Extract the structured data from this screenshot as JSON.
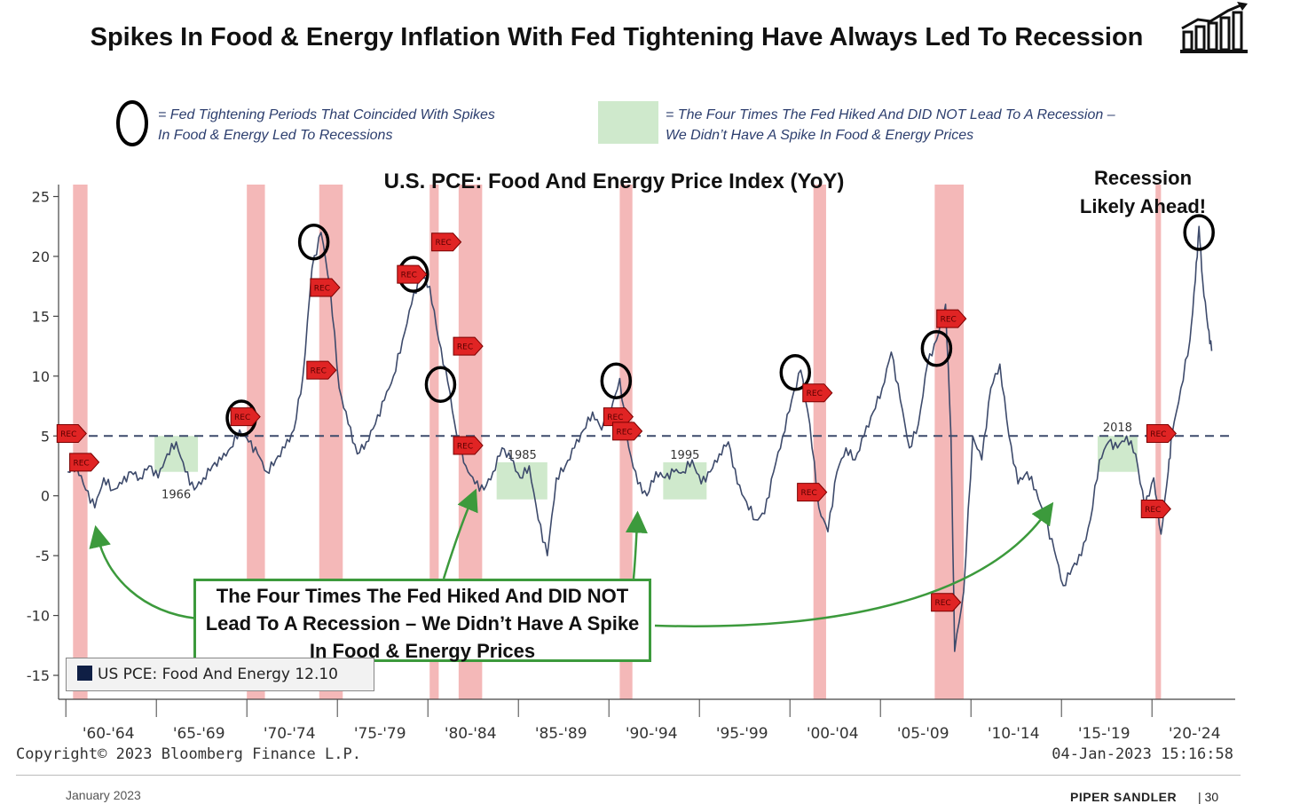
{
  "header": {
    "title": "Spikes In Food & Energy Inflation With Fed Tightening Have Always Led To Recession",
    "logo_icon": "bar-chart-arrow-icon"
  },
  "legend_notes": {
    "circle_note_line1": "= Fed Tightening Periods That Coincided With Spikes",
    "circle_note_line2": "In Food & Energy Led To Recessions",
    "green_note_line1": "= The Four Times The Fed Hiked And DID NOT Lead To A Recession –",
    "green_note_line2": "We Didn’t Have A Spike In Food & Energy Prices"
  },
  "colors": {
    "series": "#3d4a6b",
    "recession_band": "#f4b8b8",
    "green_band": "#cfe9cc",
    "rec_marker": "#e02424",
    "callout_border": "#3c9a3c",
    "dash_line": "#3d4a6b"
  },
  "callout": {
    "line1": "The Four Times The Fed Hiked And DID NOT",
    "line2": "Lead To A Recession – We Didn’t Have A Spike",
    "line3": "In Food & Energy Prices"
  },
  "annotation": {
    "line1": "Recession",
    "line2": "Likely Ahead!"
  },
  "footer": {
    "copyright": "Copyright© 2023 Bloomberg Finance L.P.",
    "timestamp": "04-Jan-2023 15:16:58",
    "date": "January 2023",
    "brand": "PIPER SANDLER",
    "page": "| 30"
  },
  "chart_data": {
    "type": "line",
    "title": "U.S. PCE: Food And Energy Price Index (YoY)",
    "legend": "US PCE: Food And Energy 12.10",
    "last_value": 12.1,
    "x_range": [
      1959.5,
      2024.5
    ],
    "ylim": [
      -17,
      26
    ],
    "yticks": [
      25,
      20,
      15,
      10,
      5,
      0,
      -5,
      -10,
      -15
    ],
    "reference_line": 5,
    "xtick_labels": [
      "'60-'64",
      "'65-'69",
      "'70-'74",
      "'75-'79",
      "'80-'84",
      "'85-'89",
      "'90-'94",
      "'95-'99",
      "'00-'04",
      "'05-'09",
      "'10-'14",
      "'15-'19",
      "'20-'24"
    ],
    "recession_bands": [
      [
        1960.3,
        1961.1
      ],
      [
        1969.9,
        1970.9
      ],
      [
        1973.9,
        1975.2
      ],
      [
        1980.0,
        1980.5
      ],
      [
        1981.6,
        1982.9
      ],
      [
        1990.5,
        1991.2
      ],
      [
        2001.2,
        2001.9
      ],
      [
        2007.9,
        2009.5
      ],
      [
        2020.1,
        2020.4
      ]
    ],
    "green_bands": [
      {
        "start": 1964.8,
        "end": 1967.2,
        "label": "1966"
      },
      {
        "start": 1983.7,
        "end": 1986.5,
        "label": "1985"
      },
      {
        "start": 1992.9,
        "end": 1995.3,
        "label": "1995"
      },
      {
        "start": 2016.9,
        "end": 2019.1,
        "label": "2018"
      }
    ],
    "circles": [
      [
        1969.6,
        6.5
      ],
      [
        1973.6,
        21.2
      ],
      [
        1979.1,
        18.5
      ],
      [
        1980.6,
        9.3
      ],
      [
        1990.3,
        9.6
      ],
      [
        2000.2,
        10.3
      ],
      [
        2008.0,
        12.3
      ],
      [
        2022.5,
        22.0
      ]
    ],
    "rec_markers": [
      [
        1960.2,
        5.2
      ],
      [
        1960.9,
        2.8
      ],
      [
        1969.8,
        6.6
      ],
      [
        1974.2,
        17.4
      ],
      [
        1974.0,
        10.5
      ],
      [
        1979.0,
        18.5
      ],
      [
        1980.9,
        21.2
      ],
      [
        1982.1,
        12.5
      ],
      [
        1982.1,
        4.2
      ],
      [
        1990.4,
        6.6
      ],
      [
        1990.9,
        5.4
      ],
      [
        2001.4,
        8.6
      ],
      [
        2001.1,
        0.3
      ],
      [
        2008.8,
        14.8
      ],
      [
        2008.5,
        -8.9
      ],
      [
        2020.4,
        5.2
      ],
      [
        2020.1,
        -1.1
      ]
    ],
    "series": [
      {
        "name": "US PCE: Food And Energy",
        "x": [
          1960.0,
          1960.5,
          1961.0,
          1961.5,
          1962.0,
          1962.5,
          1963.0,
          1963.5,
          1964.0,
          1964.5,
          1965.0,
          1965.5,
          1966.0,
          1966.5,
          1967.0,
          1967.5,
          1968.0,
          1968.5,
          1969.0,
          1969.5,
          1970.0,
          1970.5,
          1971.0,
          1971.5,
          1972.0,
          1972.5,
          1973.0,
          1973.5,
          1974.0,
          1974.5,
          1975.0,
          1975.5,
          1976.0,
          1976.5,
          1977.0,
          1977.5,
          1978.0,
          1978.5,
          1979.0,
          1979.5,
          1980.0,
          1980.5,
          1981.0,
          1981.5,
          1982.0,
          1982.5,
          1983.0,
          1983.5,
          1984.0,
          1984.5,
          1985.0,
          1985.5,
          1986.0,
          1986.5,
          1987.0,
          1987.5,
          1988.0,
          1988.5,
          1989.0,
          1989.5,
          1990.0,
          1990.5,
          1991.0,
          1991.5,
          1992.0,
          1992.5,
          1993.0,
          1993.5,
          1994.0,
          1994.5,
          1995.0,
          1995.5,
          1996.0,
          1996.5,
          1997.0,
          1997.5,
          1998.0,
          1998.5,
          1999.0,
          1999.5,
          2000.0,
          2000.5,
          2001.0,
          2001.5,
          2002.0,
          2002.5,
          2003.0,
          2003.5,
          2004.0,
          2004.5,
          2005.0,
          2005.5,
          2006.0,
          2006.5,
          2007.0,
          2007.5,
          2008.0,
          2008.5,
          2008.8,
          2009.0,
          2009.5,
          2010.0,
          2010.5,
          2011.0,
          2011.5,
          2012.0,
          2012.5,
          2013.0,
          2013.5,
          2014.0,
          2014.5,
          2015.0,
          2015.5,
          2016.0,
          2016.5,
          2017.0,
          2017.5,
          2018.0,
          2018.5,
          2019.0,
          2019.5,
          2020.0,
          2020.4,
          2020.8,
          2021.0,
          2021.5,
          2022.0,
          2022.3,
          2022.5,
          2022.7,
          2023.0,
          2023.2
        ],
        "y": [
          2.0,
          2.5,
          0.5,
          -1.0,
          1.5,
          0.5,
          1.0,
          2.0,
          1.5,
          2.5,
          1.5,
          3.5,
          4.5,
          2.0,
          0.5,
          1.5,
          2.5,
          3.0,
          4.0,
          5.5,
          4.5,
          3.5,
          2.0,
          3.0,
          4.0,
          5.5,
          10.0,
          19.0,
          22.0,
          17.5,
          9.0,
          6.0,
          3.5,
          4.5,
          6.0,
          8.0,
          10.0,
          13.0,
          16.0,
          18.5,
          17.5,
          13.0,
          9.5,
          5.0,
          2.5,
          1.0,
          0.5,
          2.0,
          4.0,
          3.0,
          1.5,
          2.5,
          -2.0,
          -5.0,
          1.5,
          2.5,
          4.0,
          5.5,
          7.0,
          5.5,
          7.0,
          9.8,
          4.0,
          1.0,
          0.0,
          2.0,
          1.5,
          2.0,
          2.0,
          3.0,
          1.0,
          2.0,
          3.5,
          4.5,
          1.0,
          -0.5,
          -2.0,
          -1.5,
          2.0,
          5.0,
          8.0,
          10.5,
          6.0,
          -1.0,
          -3.0,
          2.0,
          4.0,
          3.0,
          5.0,
          7.0,
          9.0,
          12.0,
          8.0,
          4.0,
          6.0,
          11.0,
          13.0,
          16.0,
          5.0,
          -13.0,
          -8.0,
          5.0,
          3.0,
          9.0,
          11.0,
          5.0,
          1.0,
          2.0,
          0.5,
          -2.0,
          -4.5,
          -7.5,
          -6.0,
          -5.0,
          -2.0,
          3.0,
          4.5,
          4.0,
          5.0,
          3.5,
          -1.0,
          1.5,
          -3.2,
          2.0,
          5.0,
          9.0,
          13.0,
          18.0,
          22.5,
          18.0,
          14.0,
          12.1
        ]
      }
    ]
  }
}
